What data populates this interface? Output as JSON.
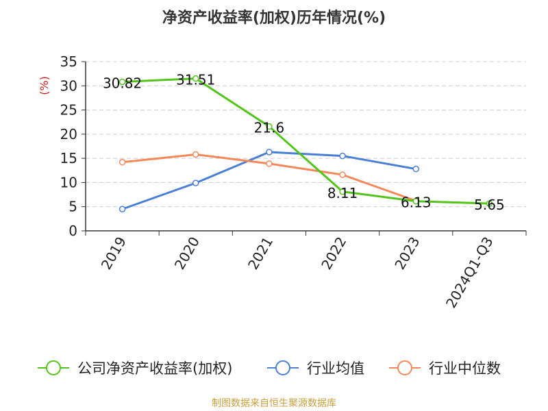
{
  "title": "净资产收益率(加权)历年情况(%)",
  "footer": "制图数据来自恒生聚源数据库",
  "chart_data": {
    "type": "line",
    "title": "净资产收益率(加权)历年情况(%)",
    "ylabel": "(%)",
    "xlabel": "",
    "ylim": [
      0,
      35
    ],
    "yticks": [
      0,
      5,
      10,
      15,
      20,
      25,
      30,
      35
    ],
    "categories": [
      "2019",
      "2020",
      "2021",
      "2022",
      "2023",
      "2024Q1-Q3"
    ],
    "grid": true,
    "legend_position": "bottom",
    "series": [
      {
        "name": "公司净资产收益率(加权)",
        "color": "#52c41a",
        "values": [
          30.82,
          31.51,
          21.6,
          8.11,
          6.13,
          5.65
        ],
        "labels": [
          "30.82",
          "31.51",
          "21.6",
          "8.11",
          "6.13",
          "5.65"
        ]
      },
      {
        "name": "行业均值",
        "color": "#4a7fd6",
        "values": [
          4.5,
          9.9,
          16.3,
          15.5,
          12.8,
          null
        ]
      },
      {
        "name": "行业中位数",
        "color": "#f5885a",
        "values": [
          14.2,
          15.8,
          13.9,
          11.6,
          6.2,
          null
        ]
      }
    ]
  }
}
